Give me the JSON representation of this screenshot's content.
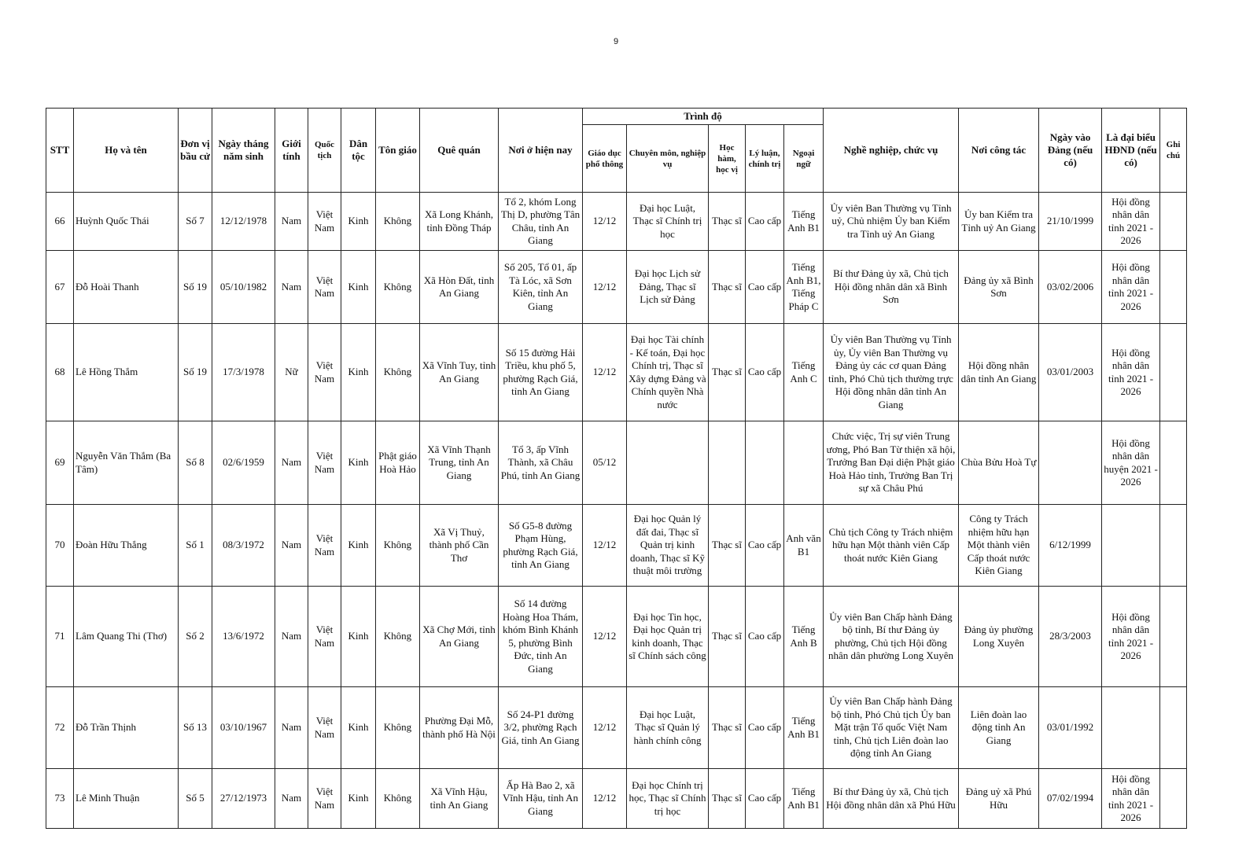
{
  "page_number": "9",
  "headers": {
    "stt": "STT",
    "name": "Họ và tên",
    "unit": "Đơn vị bầu cử",
    "dob": "Ngày tháng năm sinh",
    "gender": "Giới tính",
    "nationality": "Quốc tịch",
    "ethnicity": "Dân tộc",
    "religion": "Tôn giáo",
    "hometown": "Quê quán",
    "residence": "Nơi ở hiện nay",
    "level_group": "Trình độ",
    "general_edu": "Giáo dục phổ thông",
    "specialty": "Chuyên môn, nghiệp vụ",
    "degree": "Học hàm, học vị",
    "politics": "Lý luận, chính trị",
    "language": "Ngoại ngữ",
    "position": "Nghề nghiệp, chức vụ",
    "workplace": "Nơi công tác",
    "party_date": "Ngày vào Đảng (nếu có)",
    "council": "Là đại biểu HĐND (nếu có)",
    "note": "Ghi chú"
  },
  "rows": [
    {
      "stt": "66",
      "name": "Huỳnh Quốc Thái",
      "unit": "Số 7",
      "dob": "12/12/1978",
      "gender": "Nam",
      "nationality": "Việt Nam",
      "ethnicity": "Kinh",
      "religion": "Không",
      "hometown": "Xã Long Khánh, tỉnh Đồng Tháp",
      "residence": "Tổ 2, khóm Long Thị D, phường Tân Châu, tỉnh An Giang",
      "general_edu": "12/12",
      "specialty": "Đại học Luật, Thạc sĩ Chính trị học",
      "degree": "Thạc sĩ",
      "politics": "Cao cấp",
      "language": "Tiếng Anh B1",
      "position": "Ủy viên Ban Thường vụ Tỉnh uỷ, Chủ nhiệm Ủy ban Kiểm tra Tỉnh uỷ An Giang",
      "workplace": "Ủy ban Kiểm tra Tỉnh uỷ An Giang",
      "party_date": "21/10/1999",
      "council": "Hội đồng nhân dân tỉnh 2021 - 2026",
      "note": ""
    },
    {
      "stt": "67",
      "name": "Đỗ Hoài Thanh",
      "unit": "Số 19",
      "dob": "05/10/1982",
      "gender": "Nam",
      "nationality": "Việt Nam",
      "ethnicity": "Kinh",
      "religion": "Không",
      "hometown": "Xã Hòn Đất, tỉnh An Giang",
      "residence": "Số 205, Tổ 01, ấp Tà Lóc, xã Sơn Kiên, tỉnh An Giang",
      "general_edu": "12/12",
      "specialty": "Đại học Lịch sử Đảng, Thạc sĩ Lịch sử Đảng",
      "degree": "Thạc sĩ",
      "politics": "Cao cấp",
      "language": "Tiếng Anh B1, Tiếng Pháp C",
      "position": "Bí thư Đảng ủy xã, Chủ tịch Hội đồng nhân dân xã Bình Sơn",
      "workplace": "Đảng ủy xã Bình Sơn",
      "party_date": "03/02/2006",
      "council": "Hội đồng nhân dân tỉnh 2021 - 2026",
      "note": ""
    },
    {
      "stt": "68",
      "name": "Lê Hồng Thắm",
      "unit": "Số 19",
      "dob": "17/3/1978",
      "gender": "Nữ",
      "nationality": "Việt Nam",
      "ethnicity": "Kinh",
      "religion": "Không",
      "hometown": "Xã Vĩnh Tuy, tỉnh An Giang",
      "residence": "Số 15 đường Hải Triều, khu phố 5, phường Rạch Giá, tỉnh An Giang",
      "general_edu": "12/12",
      "specialty": "Đại học Tài chính - Kế toán, Đại học Chính trị, Thạc sĩ Xây dựng Đảng và Chính quyền Nhà nước",
      "degree": "Thạc sĩ",
      "politics": "Cao cấp",
      "language": "Tiếng Anh C",
      "position": "Ủy viên Ban Thường vụ Tỉnh ủy, Ủy viên Ban Thường vụ Đảng ủy các cơ quan Đảng tỉnh, Phó Chủ tịch thường trực Hội đồng nhân dân tỉnh An Giang",
      "workplace": "Hội đồng nhân dân tỉnh An Giang",
      "party_date": "03/01/2003",
      "council": "Hội đồng nhân dân tỉnh 2021 - 2026",
      "note": ""
    },
    {
      "stt": "69",
      "name": "Nguyễn Văn Thắm (Ba Tâm)",
      "unit": "Số 8",
      "dob": "02/6/1959",
      "gender": "Nam",
      "nationality": "Việt Nam",
      "ethnicity": "Kinh",
      "religion": "Phật giáo Hoà Hảo",
      "hometown": "Xã Vĩnh Thạnh Trung, tỉnh An Giang",
      "residence": "Tổ 3, ấp Vĩnh Thành, xã Châu Phú, tỉnh An Giang",
      "general_edu": "05/12",
      "specialty": "",
      "degree": "",
      "politics": "",
      "language": "",
      "position": "Chức việc, Trị sự viên Trung ương, Phó Ban Từ thiện xã hội, Trưởng Ban Đại diện Phật giáo Hoà Hảo tỉnh, Trưởng Ban Trị sự xã Châu Phú",
      "workplace": "Chùa Bửu Hoà Tự",
      "party_date": "",
      "council": "Hội đồng nhân dân huyện 2021 - 2026",
      "note": ""
    },
    {
      "stt": "70",
      "name": "Đoàn Hữu Thắng",
      "unit": "Số 1",
      "dob": "08/3/1972",
      "gender": "Nam",
      "nationality": "Việt Nam",
      "ethnicity": "Kinh",
      "religion": "Không",
      "hometown": "Xã Vị Thuỷ, thành phố Cần Thơ",
      "residence": "Số G5-8 đường Phạm Hùng, phường Rạch Giá, tỉnh An Giang",
      "general_edu": "12/12",
      "specialty": "Đại học Quản lý đất đai, Thạc sĩ Quản trị kinh doanh, Thạc sĩ Kỹ thuật môi trường",
      "degree": "Thạc sĩ",
      "politics": "Cao cấp",
      "language": "Anh văn B1",
      "position": "Chủ tịch Công ty Trách nhiệm hữu hạn Một thành viên Cấp thoát nước Kiên Giang",
      "workplace": "Công ty Trách nhiệm hữu hạn Một thành viên Cấp thoát nước Kiên Giang",
      "party_date": "6/12/1999",
      "council": "",
      "note": ""
    },
    {
      "stt": "71",
      "name": "Lâm Quang Thi (Thơ)",
      "unit": "Số 2",
      "dob": "13/6/1972",
      "gender": "Nam",
      "nationality": "Việt Nam",
      "ethnicity": "Kinh",
      "religion": "Không",
      "hometown": "Xã Chợ Mới, tỉnh An Giang",
      "residence": "Số 14 đường Hoàng Hoa Thám, khóm Bình Khánh 5, phường Bình Đức, tỉnh An Giang",
      "general_edu": "12/12",
      "specialty": "Đại học Tin học, Đại học Quản trị kinh doanh, Thạc sĩ Chính sách công",
      "degree": "Thạc sĩ",
      "politics": "Cao cấp",
      "language": "Tiếng Anh B",
      "position": "Ủy viên Ban Chấp hành Đảng bộ tỉnh, Bí thư Đảng ủy phường, Chủ tịch Hội đồng nhân dân phường Long Xuyên",
      "workplace": "Đảng ủy phường Long Xuyên",
      "party_date": "28/3/2003",
      "council": "Hội đồng nhân dân tỉnh 2021 - 2026",
      "note": ""
    },
    {
      "stt": "72",
      "name": "Đỗ Trần Thịnh",
      "unit": "Số 13",
      "dob": "03/10/1967",
      "gender": "Nam",
      "nationality": "Việt Nam",
      "ethnicity": "Kinh",
      "religion": "Không",
      "hometown": "Phường Đại Mỗ, thành phố Hà Nội",
      "residence": "Số 24-P1 đường 3/2, phường Rạch Giá, tỉnh An Giang",
      "general_edu": "12/12",
      "specialty": "Đại học Luật, Thạc sĩ Quản lý hành chính công",
      "degree": "Thạc sĩ",
      "politics": "Cao cấp",
      "language": "Tiếng Anh B1",
      "position": "Ủy viên Ban Chấp hành Đảng bộ tỉnh, Phó Chủ tịch Ủy ban Mặt trận Tổ quốc Việt Nam tỉnh, Chủ tịch Liên đoàn lao động tỉnh An Giang",
      "workplace": "Liên đoàn lao động tỉnh An Giang",
      "party_date": "03/01/1992",
      "council": "",
      "note": ""
    },
    {
      "stt": "73",
      "name": "Lê Minh Thuận",
      "unit": "Số 5",
      "dob": "27/12/1973",
      "gender": "Nam",
      "nationality": "Việt Nam",
      "ethnicity": "Kinh",
      "religion": "Không",
      "hometown": "Xã Vĩnh Hậu, tỉnh An Giang",
      "residence": "Ấp Hà Bao 2, xã Vĩnh Hậu, tỉnh An Giang",
      "general_edu": "12/12",
      "specialty": "Đại học Chính trị học, Thạc sĩ Chính trị học",
      "degree": "Thạc sĩ",
      "politics": "Cao cấp",
      "language": "Tiếng Anh B1",
      "position": "Bí thư Đảng ủy xã, Chủ tịch Hội đồng nhân dân xã Phú Hữu",
      "workplace": "Đảng uỷ xã Phú Hữu",
      "party_date": "07/02/1994",
      "council": "Hội đồng nhân dân tỉnh 2021 - 2026",
      "note": ""
    }
  ]
}
